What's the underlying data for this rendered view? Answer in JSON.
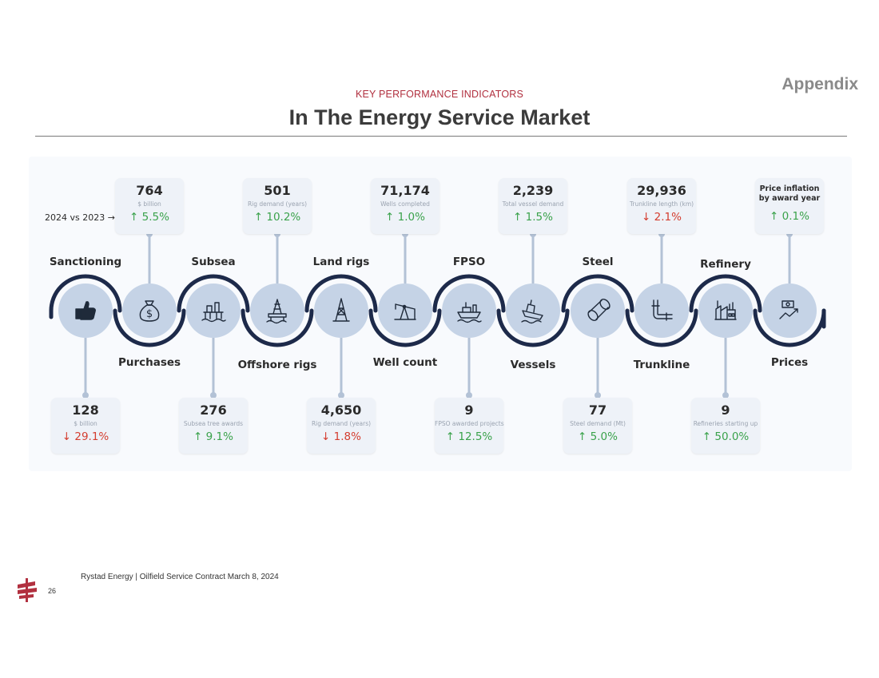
{
  "header": {
    "kicker": "KEY PERFORMANCE INDICATORS",
    "title": "In The Energy Service Market",
    "appendix": "Appendix"
  },
  "comparison_label": "2024 vs 2023 →",
  "top_cards": [
    {
      "value": "764",
      "unit": "$ billion",
      "change": "↑ 5.5%",
      "direction": "up"
    },
    {
      "value": "501",
      "unit": "Rig demand (years)",
      "change": "↑ 10.2%",
      "direction": "up"
    },
    {
      "value": "71,174",
      "unit": "Wells completed",
      "change": "↑ 1.0%",
      "direction": "up"
    },
    {
      "value": "2,239",
      "unit": "Total vessel demand",
      "change": "↑ 1.5%",
      "direction": "up"
    },
    {
      "value": "29,936",
      "unit": "Trunkline length (km)",
      "change": "↓ 2.1%",
      "direction": "down"
    },
    {
      "value": "Price inflation by award year",
      "unit": "",
      "change": "↑ 0.1%",
      "direction": "up"
    }
  ],
  "bottom_cards": [
    {
      "value": "128",
      "unit": "$ billion",
      "change": "↓ 29.1%",
      "direction": "down"
    },
    {
      "value": "276",
      "unit": "Subsea tree awards",
      "change": "↑ 9.1%",
      "direction": "up"
    },
    {
      "value": "4,650",
      "unit": "Rig demand (years)",
      "change": "↓ 1.8%",
      "direction": "down"
    },
    {
      "value": "9",
      "unit": "FPSO awarded projects",
      "change": "↑ 12.5%",
      "direction": "up"
    },
    {
      "value": "77",
      "unit": "Steel demand (Mt)",
      "change": "↑ 5.0%",
      "direction": "up"
    },
    {
      "value": "9",
      "unit": "Refineries starting up",
      "change": "↑ 50.0%",
      "direction": "up"
    }
  ],
  "segments": [
    {
      "label": "Sanctioning",
      "icon": "thumbs-up-icon"
    },
    {
      "label": "Purchases",
      "icon": "money-bag-icon"
    },
    {
      "label": "Subsea",
      "icon": "subsea-platform-icon"
    },
    {
      "label": "Offshore rigs",
      "icon": "offshore-rig-icon"
    },
    {
      "label": "Land rigs",
      "icon": "land-rig-icon"
    },
    {
      "label": "Well count",
      "icon": "pump-jack-icon"
    },
    {
      "label": "FPSO",
      "icon": "fpso-ship-icon"
    },
    {
      "label": "Vessels",
      "icon": "vessel-icon"
    },
    {
      "label": "Steel",
      "icon": "steel-pipe-icon"
    },
    {
      "label": "Trunkline",
      "icon": "pipeline-icon"
    },
    {
      "label": "Refinery",
      "icon": "refinery-icon"
    },
    {
      "label": "Prices",
      "icon": "price-chart-icon"
    }
  ],
  "colors": {
    "accent": "#b1303f",
    "up": "#3aa24b",
    "down": "#d43d2f",
    "chain": "#1d2a4a",
    "circle": "#c5d3e6"
  },
  "footer": {
    "source": "Rystad Energy | Oilfield Service Contract March 8, 2024",
    "page": "26"
  }
}
